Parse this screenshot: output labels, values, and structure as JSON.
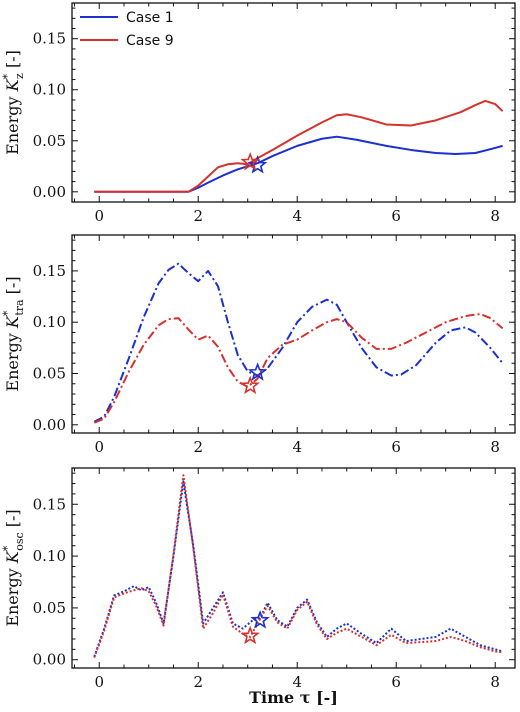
{
  "figure": {
    "xlabel": "Time τ [-]",
    "legend": [
      "Case 1",
      "Case 9"
    ]
  },
  "colors": {
    "case1": "#1c2fcf",
    "case9": "#d6322d",
    "axis": "#111111"
  },
  "chart_data": [
    {
      "type": "line",
      "ylabel_prefix": "Energy ",
      "ylabel_var": "K",
      "ylabel_sup": "*",
      "ylabel_sub": "z",
      "ylabel_suffix": " [-]",
      "line_style": "solid",
      "xlim": [
        -0.55,
        8.4
      ],
      "ylim": [
        -0.01,
        0.185
      ],
      "xticks": [
        "0",
        "2",
        "4",
        "6",
        "8"
      ],
      "yticks": [
        "0.00",
        "0.05",
        "0.10",
        "0.15"
      ],
      "legend_position": "top-left",
      "series": [
        {
          "name": "Case 1",
          "x": [
            -0.1,
            0.5,
            1.0,
            1.5,
            1.8,
            2.0,
            2.2,
            2.5,
            2.8,
            3.0,
            3.2,
            3.5,
            4.0,
            4.5,
            4.8,
            5.2,
            5.8,
            6.3,
            6.8,
            7.2,
            7.6,
            8.0,
            8.15
          ],
          "y": [
            0.0,
            0.0,
            0.0,
            0.0,
            0.0,
            0.004,
            0.009,
            0.016,
            0.022,
            0.025,
            0.028,
            0.035,
            0.045,
            0.052,
            0.054,
            0.051,
            0.045,
            0.041,
            0.038,
            0.037,
            0.038,
            0.043,
            0.045
          ],
          "marker": {
            "x": 3.2,
            "y": 0.026
          }
        },
        {
          "name": "Case 9",
          "x": [
            -0.1,
            0.5,
            1.0,
            1.5,
            1.8,
            2.0,
            2.2,
            2.4,
            2.6,
            2.8,
            3.0,
            3.2,
            3.5,
            4.0,
            4.5,
            4.8,
            5.0,
            5.3,
            5.8,
            6.3,
            6.8,
            7.3,
            7.6,
            7.8,
            8.0,
            8.15
          ],
          "y": [
            0.0,
            0.0,
            0.0,
            0.0,
            0.0,
            0.006,
            0.015,
            0.024,
            0.027,
            0.028,
            0.027,
            0.033,
            0.041,
            0.055,
            0.068,
            0.075,
            0.076,
            0.073,
            0.066,
            0.065,
            0.07,
            0.078,
            0.085,
            0.089,
            0.086,
            0.079
          ],
          "marker": {
            "x": 3.05,
            "y": 0.029
          }
        }
      ]
    },
    {
      "type": "line",
      "ylabel_prefix": "Energy ",
      "ylabel_var": "K",
      "ylabel_sup": "*",
      "ylabel_sub": "tra",
      "ylabel_suffix": " [-]",
      "line_style": "dashdot",
      "xlim": [
        -0.55,
        8.4
      ],
      "ylim": [
        -0.008,
        0.185
      ],
      "xticks": [
        "0",
        "2",
        "4",
        "6",
        "8"
      ],
      "yticks": [
        "0.00",
        "0.05",
        "0.10",
        "0.15"
      ],
      "series": [
        {
          "name": "Case 1",
          "x": [
            -0.1,
            0.1,
            0.3,
            0.6,
            0.9,
            1.2,
            1.4,
            1.6,
            1.8,
            2.0,
            2.2,
            2.4,
            2.6,
            2.8,
            3.0,
            3.2,
            3.4,
            3.7,
            4.0,
            4.3,
            4.6,
            4.8,
            5.0,
            5.3,
            5.6,
            5.9,
            6.1,
            6.4,
            6.8,
            7.1,
            7.4,
            7.6,
            7.9,
            8.15
          ],
          "y": [
            0.003,
            0.008,
            0.027,
            0.065,
            0.105,
            0.138,
            0.151,
            0.157,
            0.148,
            0.14,
            0.15,
            0.135,
            0.1,
            0.068,
            0.052,
            0.048,
            0.055,
            0.075,
            0.1,
            0.115,
            0.122,
            0.117,
            0.1,
            0.075,
            0.056,
            0.048,
            0.049,
            0.058,
            0.08,
            0.092,
            0.095,
            0.09,
            0.075,
            0.06
          ],
          "marker": {
            "x": 3.2,
            "y": 0.051
          }
        },
        {
          "name": "Case 9",
          "x": [
            -0.1,
            0.1,
            0.3,
            0.6,
            0.9,
            1.2,
            1.4,
            1.6,
            1.8,
            2.0,
            2.2,
            2.4,
            2.6,
            2.8,
            3.0,
            3.2,
            3.4,
            3.7,
            4.0,
            4.3,
            4.6,
            4.8,
            5.0,
            5.3,
            5.6,
            5.9,
            6.2,
            6.6,
            7.0,
            7.4,
            7.7,
            7.9,
            8.15
          ],
          "y": [
            0.002,
            0.006,
            0.022,
            0.052,
            0.078,
            0.097,
            0.103,
            0.104,
            0.093,
            0.083,
            0.087,
            0.076,
            0.056,
            0.042,
            0.037,
            0.045,
            0.065,
            0.078,
            0.083,
            0.092,
            0.1,
            0.103,
            0.1,
            0.085,
            0.074,
            0.074,
            0.08,
            0.09,
            0.1,
            0.106,
            0.108,
            0.104,
            0.094
          ],
          "marker": {
            "x": 3.05,
            "y": 0.038
          }
        }
      ]
    },
    {
      "type": "line",
      "ylabel_prefix": "Energy ",
      "ylabel_var": "K",
      "ylabel_sup": "*",
      "ylabel_sub": "osc",
      "ylabel_suffix": " [-]",
      "line_style": "dotted",
      "xlim": [
        -0.55,
        8.4
      ],
      "ylim": [
        -0.008,
        0.185
      ],
      "xticks": [
        "0",
        "2",
        "4",
        "6",
        "8"
      ],
      "yticks": [
        "0.00",
        "0.05",
        "0.10",
        "0.15"
      ],
      "series": [
        {
          "name": "Case 1",
          "x": [
            -0.1,
            0.1,
            0.3,
            0.5,
            0.7,
            0.85,
            1.0,
            1.15,
            1.3,
            1.5,
            1.7,
            1.9,
            2.1,
            2.3,
            2.5,
            2.7,
            2.9,
            3.1,
            3.25,
            3.4,
            3.6,
            3.8,
            4.0,
            4.2,
            4.4,
            4.6,
            4.8,
            5.0,
            5.3,
            5.6,
            5.9,
            6.2,
            6.5,
            6.8,
            7.1,
            7.4,
            7.7,
            8.0,
            8.15
          ],
          "y": [
            0.003,
            0.03,
            0.062,
            0.066,
            0.071,
            0.067,
            0.07,
            0.055,
            0.035,
            0.1,
            0.172,
            0.11,
            0.035,
            0.05,
            0.065,
            0.035,
            0.03,
            0.038,
            0.04,
            0.055,
            0.038,
            0.032,
            0.05,
            0.058,
            0.036,
            0.022,
            0.03,
            0.035,
            0.025,
            0.016,
            0.03,
            0.018,
            0.02,
            0.022,
            0.03,
            0.022,
            0.014,
            0.01,
            0.008
          ],
          "marker": {
            "x": 3.25,
            "y": 0.038
          }
        },
        {
          "name": "Case 9",
          "x": [
            -0.1,
            0.1,
            0.3,
            0.5,
            0.7,
            0.85,
            1.0,
            1.15,
            1.3,
            1.5,
            1.7,
            1.9,
            2.1,
            2.3,
            2.5,
            2.7,
            2.9,
            3.05,
            3.2,
            3.4,
            3.6,
            3.8,
            4.0,
            4.2,
            4.4,
            4.6,
            4.8,
            5.0,
            5.3,
            5.6,
            5.9,
            6.2,
            6.5,
            6.8,
            7.1,
            7.4,
            7.7,
            8.0,
            8.15
          ],
          "y": [
            0.002,
            0.028,
            0.06,
            0.064,
            0.067,
            0.069,
            0.066,
            0.052,
            0.033,
            0.102,
            0.178,
            0.108,
            0.03,
            0.045,
            0.063,
            0.032,
            0.025,
            0.022,
            0.035,
            0.052,
            0.036,
            0.03,
            0.048,
            0.056,
            0.034,
            0.02,
            0.026,
            0.03,
            0.022,
            0.014,
            0.024,
            0.016,
            0.017,
            0.018,
            0.022,
            0.018,
            0.012,
            0.008,
            0.007
          ],
          "marker": {
            "x": 3.05,
            "y": 0.023
          }
        }
      ]
    }
  ]
}
